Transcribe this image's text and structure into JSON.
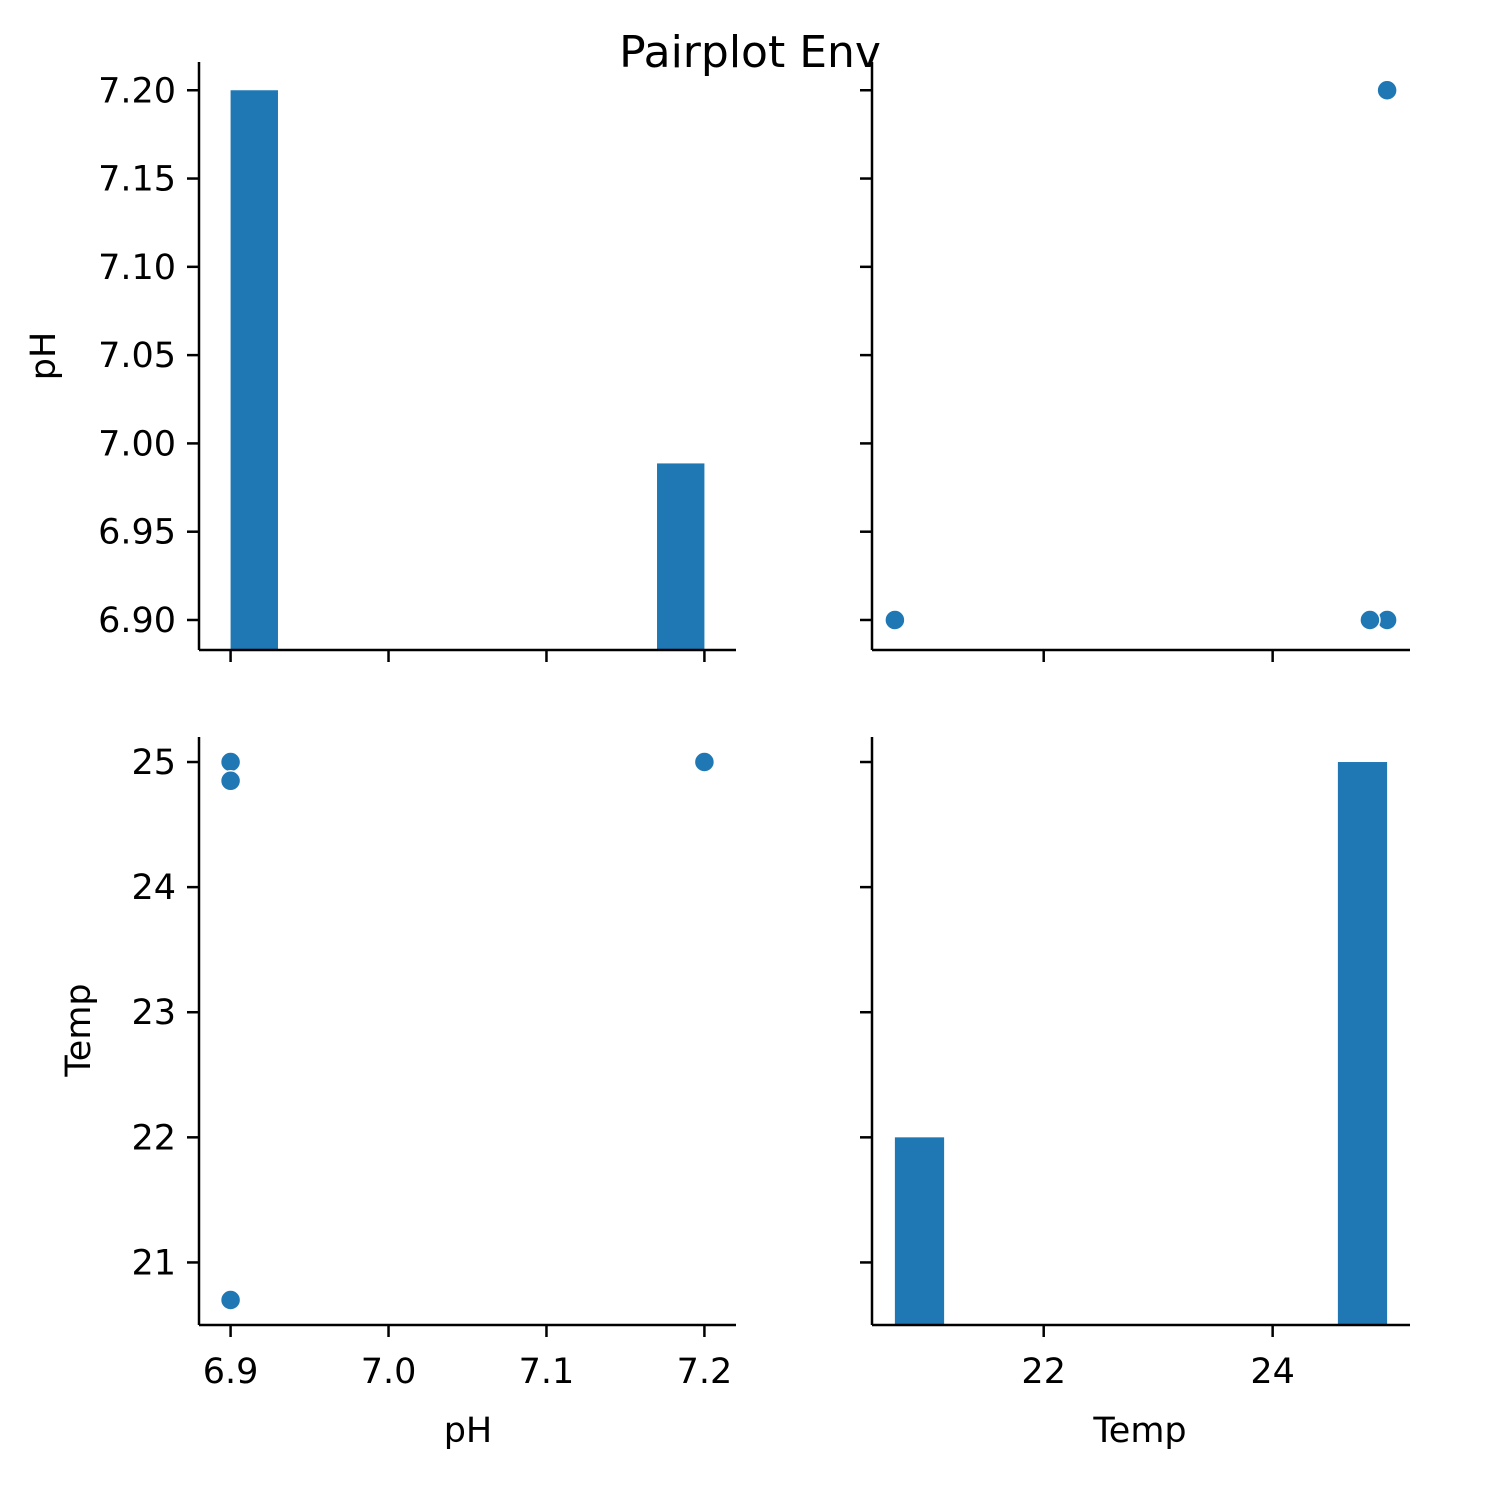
{
  "chart_data": {
    "type": "scatter",
    "title": "Pairplot Env",
    "colors": {
      "series": "#1f77b4"
    },
    "variables": [
      "pH",
      "Temp"
    ],
    "observations": [
      {
        "pH": 6.9,
        "Temp": 25.0
      },
      {
        "pH": 6.9,
        "Temp": 24.85
      },
      {
        "pH": 7.2,
        "Temp": 25.0
      },
      {
        "pH": 6.9,
        "Temp": 20.7
      }
    ],
    "axes": {
      "pH": {
        "label": "pH",
        "lim": [
          6.88,
          7.22
        ]
      },
      "Temp": {
        "label": "Temp",
        "lim": [
          20.5,
          25.2
        ]
      },
      "pH_hist_y": {
        "lim": [
          6.883,
          7.216
        ]
      }
    },
    "ticks": {
      "pH_x": [
        "6.9",
        "7.0",
        "7.1",
        "7.2"
      ],
      "pH_y": [
        "6.90",
        "6.95",
        "7.00",
        "7.05",
        "7.10",
        "7.15",
        "7.20"
      ],
      "Temp_x": [
        "22",
        "24"
      ],
      "Temp_y": [
        "21",
        "22",
        "23",
        "24",
        "25"
      ]
    },
    "panels": [
      {
        "position": "top-left",
        "kind": "hist",
        "var": "pH",
        "bins": [
          {
            "x0": 6.9,
            "x1": 6.93,
            "height": 3
          },
          {
            "x0": 7.17,
            "x1": 7.2,
            "height": 1
          }
        ]
      },
      {
        "position": "top-right",
        "kind": "scatter",
        "x": "Temp",
        "y": "pH"
      },
      {
        "position": "bottom-left",
        "kind": "scatter",
        "x": "pH",
        "y": "Temp"
      },
      {
        "position": "bottom-right",
        "kind": "hist",
        "var": "Temp",
        "bins": [
          {
            "x0": 20.7,
            "x1": 21.13,
            "height": 1
          },
          {
            "x0": 24.57,
            "x1": 25.0,
            "height": 3
          }
        ]
      }
    ]
  }
}
